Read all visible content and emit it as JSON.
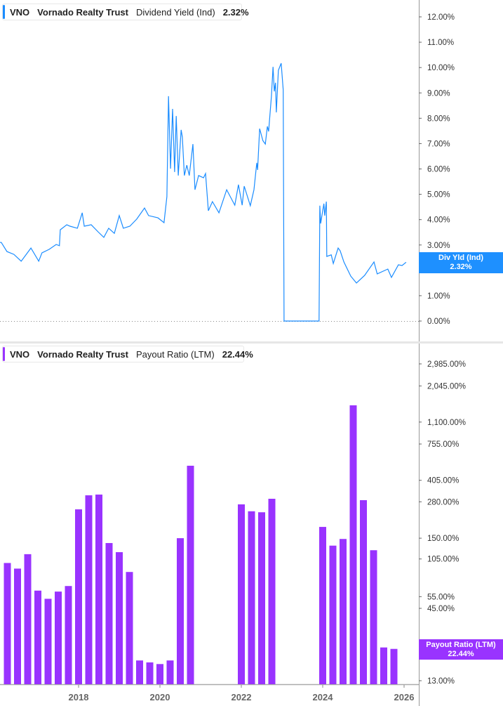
{
  "colors": {
    "yield_line": "#1a8cff",
    "payout_bars": "#9933ff",
    "yield_badge": "#1e90ff",
    "payout_badge": "#9933ff"
  },
  "top_legend": {
    "ticker": "VNO",
    "company": "Vornado Realty Trust",
    "metric": "Dividend Yield (Ind)",
    "value": "2.32%"
  },
  "bottom_legend": {
    "ticker": "VNO",
    "company": "Vornado Realty Trust",
    "metric": "Payout Ratio (LTM)",
    "value": "22.44%"
  },
  "top_badge": {
    "label": "Div Yld (Ind)",
    "value": "2.32%"
  },
  "bottom_badge": {
    "label": "Payout Ratio (LTM)",
    "value": "22.44%"
  },
  "chart_data": [
    {
      "type": "line",
      "series": [
        {
          "name": "Dividend Yield (Ind)",
          "points": [
            [
              2016.07,
              3.1
            ],
            [
              2016.1,
              3.1
            ],
            [
              2016.24,
              2.74
            ],
            [
              2016.41,
              2.63
            ],
            [
              2016.59,
              2.36
            ],
            [
              2016.83,
              2.88
            ],
            [
              2017.02,
              2.36
            ],
            [
              2017.1,
              2.69
            ],
            [
              2017.28,
              2.83
            ],
            [
              2017.45,
              3.02
            ],
            [
              2017.53,
              2.97
            ],
            [
              2017.55,
              3.6
            ],
            [
              2017.71,
              3.8
            ],
            [
              2017.79,
              3.74
            ],
            [
              2017.97,
              3.66
            ],
            [
              2018.09,
              4.27
            ],
            [
              2018.14,
              3.74
            ],
            [
              2018.31,
              3.8
            ],
            [
              2018.48,
              3.52
            ],
            [
              2018.62,
              3.3
            ],
            [
              2018.74,
              3.66
            ],
            [
              2018.88,
              3.46
            ],
            [
              2019.0,
              4.16
            ],
            [
              2019.1,
              3.66
            ],
            [
              2019.26,
              3.74
            ],
            [
              2019.43,
              4.02
            ],
            [
              2019.62,
              4.46
            ],
            [
              2019.72,
              4.16
            ],
            [
              2019.95,
              4.07
            ],
            [
              2020.1,
              3.88
            ],
            [
              2020.17,
              4.91
            ],
            [
              2020.21,
              8.87
            ],
            [
              2020.26,
              6.01
            ],
            [
              2020.31,
              8.37
            ],
            [
              2020.36,
              5.88
            ],
            [
              2020.4,
              8.09
            ],
            [
              2020.45,
              5.74
            ],
            [
              2020.52,
              7.54
            ],
            [
              2020.55,
              7.26
            ],
            [
              2020.6,
              5.74
            ],
            [
              2020.66,
              6.15
            ],
            [
              2020.72,
              5.74
            ],
            [
              2020.81,
              6.98
            ],
            [
              2020.86,
              5.18
            ],
            [
              2020.95,
              5.74
            ],
            [
              2021.07,
              5.65
            ],
            [
              2021.12,
              5.82
            ],
            [
              2021.19,
              4.35
            ],
            [
              2021.29,
              4.71
            ],
            [
              2021.45,
              4.27
            ],
            [
              2021.64,
              5.18
            ],
            [
              2021.84,
              4.57
            ],
            [
              2021.93,
              5.38
            ],
            [
              2022.02,
              4.57
            ],
            [
              2022.07,
              5.32
            ],
            [
              2022.22,
              4.55
            ],
            [
              2022.31,
              5.18
            ],
            [
              2022.38,
              6.24
            ],
            [
              2022.4,
              5.96
            ],
            [
              2022.45,
              7.59
            ],
            [
              2022.53,
              7.12
            ],
            [
              2022.59,
              6.98
            ],
            [
              2022.64,
              7.68
            ],
            [
              2022.67,
              7.48
            ],
            [
              2022.74,
              8.87
            ],
            [
              2022.78,
              10.03
            ],
            [
              2022.81,
              9.06
            ],
            [
              2022.84,
              9.4
            ],
            [
              2022.86,
              8.23
            ],
            [
              2022.91,
              9.89
            ],
            [
              2022.98,
              10.17
            ],
            [
              2023.03,
              9.12
            ],
            [
              2023.05,
              0
            ],
            [
              2023.91,
              0
            ],
            [
              2023.93,
              4.55
            ],
            [
              2023.95,
              3.85
            ],
            [
              2024.0,
              4.35
            ],
            [
              2024.03,
              4.63
            ],
            [
              2024.05,
              4.16
            ],
            [
              2024.09,
              4.71
            ],
            [
              2024.1,
              2.55
            ],
            [
              2024.21,
              2.61
            ],
            [
              2024.26,
              2.27
            ],
            [
              2024.38,
              2.88
            ],
            [
              2024.43,
              2.77
            ],
            [
              2024.52,
              2.33
            ],
            [
              2024.69,
              1.77
            ],
            [
              2024.83,
              1.5
            ],
            [
              2025.03,
              1.8
            ],
            [
              2025.26,
              2.33
            ],
            [
              2025.34,
              1.86
            ],
            [
              2025.6,
              2.05
            ],
            [
              2025.69,
              1.72
            ],
            [
              2025.86,
              2.22
            ],
            [
              2025.95,
              2.19
            ],
            [
              2026.05,
              2.32
            ]
          ]
        }
      ],
      "yticks": [
        "12.00%",
        "11.00%",
        "10.00%",
        "9.00%",
        "8.00%",
        "7.00%",
        "6.00%",
        "5.00%",
        "4.00%",
        "3.00%",
        "2.00%",
        "1.00%",
        "0.00%"
      ],
      "ylim": [
        0,
        12
      ],
      "y_unit": "%"
    },
    {
      "type": "bar",
      "scale": "log",
      "series": [
        {
          "name": "Payout Ratio (LTM)",
          "bars": [
            [
              "2016-Q1",
              98
            ],
            [
              "2016-Q2",
              89
            ],
            [
              "2016-Q3",
              114
            ],
            [
              "2016-Q4",
              61
            ],
            [
              "2017-Q1",
              53
            ],
            [
              "2017-Q2",
              60
            ],
            [
              "2017-Q3",
              66
            ],
            [
              "2017-Q4",
              246
            ],
            [
              "2018-Q1",
              313
            ],
            [
              "2018-Q2",
              317
            ],
            [
              "2018-Q3",
              138
            ],
            [
              "2018-Q4",
              118
            ],
            [
              "2019-Q1",
              84
            ],
            [
              "2019-Q2",
              18.4
            ],
            [
              "2019-Q3",
              17.8
            ],
            [
              "2019-Q4",
              17.3
            ],
            [
              "2020-Q1",
              18.4
            ],
            [
              "2020-Q2",
              150
            ],
            [
              "2020-Q3",
              520
            ],
            [
              "2021-Q4",
              268
            ],
            [
              "2022-Q1",
              238
            ],
            [
              "2022-Q2",
              234
            ],
            [
              "2022-Q3",
              295
            ],
            [
              "2023-Q4",
              182
            ],
            [
              "2024-Q1",
              132
            ],
            [
              "2024-Q2",
              148
            ],
            [
              "2024-Q3",
              1466
            ],
            [
              "2024-Q4",
              288
            ],
            [
              "2025-Q1",
              122
            ],
            [
              "2025-Q2",
              23
            ],
            [
              "2025-Q3",
              22.44
            ]
          ]
        }
      ],
      "yticks": [
        [
          2985,
          "2,985.00%"
        ],
        [
          2045,
          "2,045.00%"
        ],
        [
          1100,
          "1,100.00%"
        ],
        [
          755,
          "755.00%"
        ],
        [
          405,
          "405.00%"
        ],
        [
          280,
          "280.00%"
        ],
        [
          150,
          "150.00%"
        ],
        [
          105,
          "105.00%"
        ],
        [
          55,
          "55.00%"
        ],
        [
          45,
          "45.00%"
        ],
        [
          13,
          "13.00%"
        ]
      ],
      "xticks": [
        "2018",
        "2020",
        "2022",
        "2024",
        "2026"
      ]
    }
  ]
}
